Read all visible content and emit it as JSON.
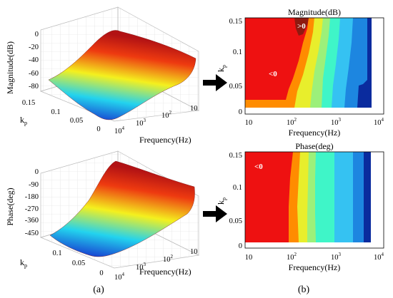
{
  "colors": {
    "band_red": "#ee1111",
    "band_darkred": "#8e1a10",
    "band_orange": "#ff8c00",
    "band_yellow": "#e8ee2c",
    "band_lime": "#9cf07a",
    "band_aqua": "#3ff5c8",
    "band_sky": "#35c2f2",
    "band_blue": "#1d86e0",
    "band_navy": "#0a2b9e",
    "surface_hot": "#b21214",
    "surface_mid": "#f4f01e",
    "surface_cool": "#23d3ee",
    "surface_cold": "#1418c9"
  },
  "panel_labels": {
    "a": "(a)",
    "b": "(b)"
  },
  "chart_data": [
    {
      "type": "surface3d",
      "xlabel": "Frequency(Hz)",
      "ylabel": "kp",
      "zlabel": "Magnitude(dB)",
      "x_ticks": [
        "10",
        "10",
        "10",
        "10"
      ],
      "x_tick_exponents": [
        "",
        "2",
        "3",
        "4"
      ],
      "y_ticks": [
        "0.15",
        "0.1",
        "0.05",
        "0"
      ],
      "z_ticks": [
        "0",
        "-20",
        "-40",
        "-60",
        "-80"
      ],
      "zlim": [
        -80,
        0
      ]
    },
    {
      "type": "contour",
      "title": "Magnitude(dB)",
      "xlabel": "Frequency(Hz)",
      "ylabel": "kp",
      "x_ticks": [
        "10",
        "10",
        "10",
        "10"
      ],
      "x_tick_exponents": [
        "",
        "2",
        "3",
        "4"
      ],
      "y_ticks": [
        "0",
        "0.05",
        "0.1",
        "0.15"
      ],
      "ylim": [
        0,
        0.15
      ],
      "annotations": [
        ">0",
        "<0"
      ]
    },
    {
      "type": "surface3d",
      "xlabel": "Frequency(Hz)",
      "ylabel": "kp",
      "zlabel": "Phase(deg)",
      "x_ticks": [
        "10",
        "10",
        "10",
        "10"
      ],
      "x_tick_exponents": [
        "",
        "2",
        "3",
        "4"
      ],
      "y_ticks": [
        "0.1",
        "0.05",
        "0"
      ],
      "z_ticks": [
        "0",
        "-90",
        "-180",
        "-270",
        "-360",
        "-450"
      ],
      "zlim": [
        -450,
        0
      ]
    },
    {
      "type": "contour",
      "title": "Phase(deg)",
      "xlabel": "Frequency(Hz)",
      "ylabel": "kp",
      "x_ticks": [
        "10",
        "10",
        "10",
        "10"
      ],
      "x_tick_exponents": [
        "",
        "2",
        "3",
        "4"
      ],
      "y_ticks": [
        "0",
        "0.05",
        "0.1",
        "0.15"
      ],
      "ylim": [
        0,
        0.15
      ],
      "annotations": [
        "<0"
      ]
    }
  ]
}
